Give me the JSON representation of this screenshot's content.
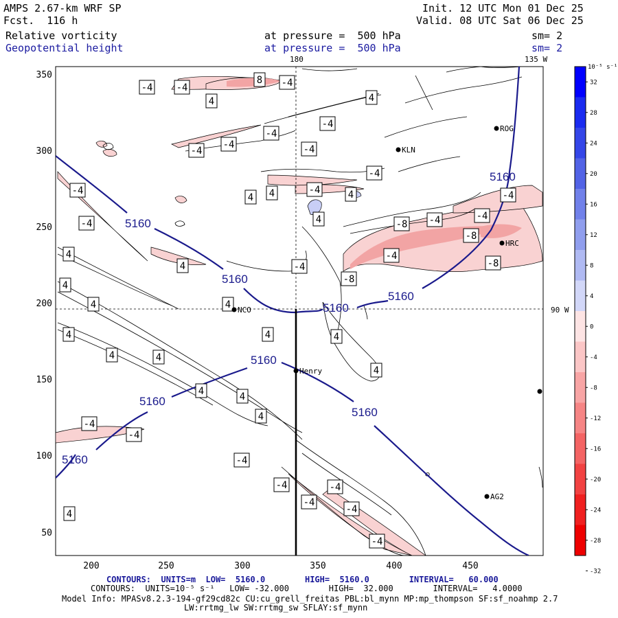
{
  "header": {
    "model": "AMPS 2.67-km WRF SP",
    "fcst": "Fcst.  116 h",
    "init": "Init. 12 UTC Mon 01 Dec 25",
    "valid": "Valid. 08 UTC Sat 06 Dec 25",
    "field1": "Relative vorticity",
    "field2": "Geopotential height",
    "pressure1": "at pressure =  500 hPa",
    "pressure2": "at pressure =  500 hPa",
    "sm1": "sm= 2",
    "sm2": "sm= 2"
  },
  "map": {
    "lon_top_180": "180",
    "lon_top_135w": "135 W",
    "lon_right_90w": "90 W",
    "x_ticks": [
      "200",
      "250",
      "300",
      "350",
      "400",
      "450"
    ],
    "y_ticks": [
      "350",
      "300",
      "250",
      "200",
      "150",
      "100",
      "50"
    ],
    "stations": [
      {
        "name": "ROG"
      },
      {
        "name": "KLN"
      },
      {
        "name": "HRC"
      },
      {
        "name": "NCO"
      },
      {
        "name": "Henry"
      },
      {
        "name": "AG2"
      }
    ],
    "height_label": "5160",
    "vort_labels": [
      "4",
      "-4",
      "8",
      "-8"
    ]
  },
  "colorbar": {
    "unit": "10⁻⁵ s⁻¹",
    "labels": [
      "32",
      "28",
      "24",
      "20",
      "16",
      "12",
      "8",
      "4",
      "0",
      "-4",
      "-8",
      "-12",
      "-16",
      "-20",
      "-24",
      "-28",
      "-32"
    ],
    "colors_blue": [
      "#0000ff",
      "#1a2bf0",
      "#3446e8",
      "#5263e6",
      "#7181ea",
      "#909eee",
      "#b0baf3",
      "#d2d7f8"
    ],
    "colors_red": [
      "#fde4e4",
      "#fbc6c6",
      "#f8a5a5",
      "#f68585",
      "#f46464",
      "#f24242",
      "#f02020",
      "#ee0000"
    ]
  },
  "footer": {
    "line1": "CONTOURS:  UNITS=m  LOW=  5160.0        HIGH=  5160.0        INTERVAL=   60.000",
    "line2": "CONTOURS:  UNITS=10⁻⁵ s⁻¹   LOW= -32.000        HIGH=  32.000        INTERVAL=   4.0000",
    "line3": "Model Info: MPASv8.2.3-194-gf29cd82c CU:cu_grell_freitas PBL:bl_mynn MP:mp_thompson SF:sf_noahmp 2.7",
    "line4": "LW:rrtmg_lw SW:rrtmg_sw SFLAY:sf_mynn"
  }
}
